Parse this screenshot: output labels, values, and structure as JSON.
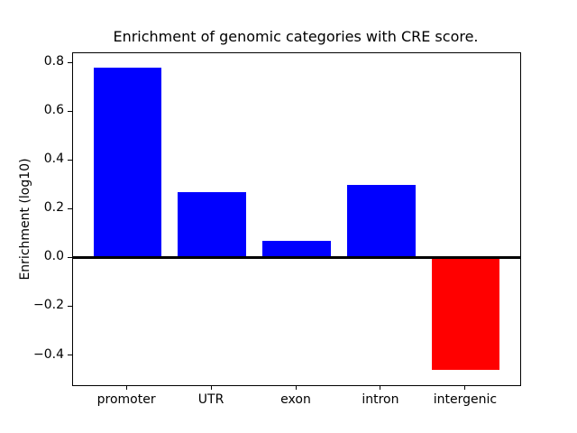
{
  "figure": {
    "background": "#ffffff",
    "axis_color": "#000000"
  },
  "chart_data": {
    "type": "bar",
    "title": "Enrichment of genomic categories with CRE score.",
    "xlabel": "",
    "ylabel": "Enrichment (log10)",
    "categories": [
      "promoter",
      "UTR",
      "exon",
      "intron",
      "intergenic"
    ],
    "values": [
      0.78,
      0.27,
      0.07,
      0.3,
      -0.46
    ],
    "bar_colors": [
      "#0000ff",
      "#0000ff",
      "#0000ff",
      "#0000ff",
      "#ff0000"
    ],
    "positive_color": "#0000ff",
    "negative_color": "#ff0000",
    "ylim": [
      -0.522,
      0.839
    ],
    "yticks": [
      -0.4,
      -0.2,
      0.0,
      0.2,
      0.4,
      0.6,
      0.8
    ],
    "xlim": [
      -0.64,
      4.64
    ],
    "bar_width": 0.8,
    "zero_line": true,
    "grid": false,
    "legend": null
  }
}
